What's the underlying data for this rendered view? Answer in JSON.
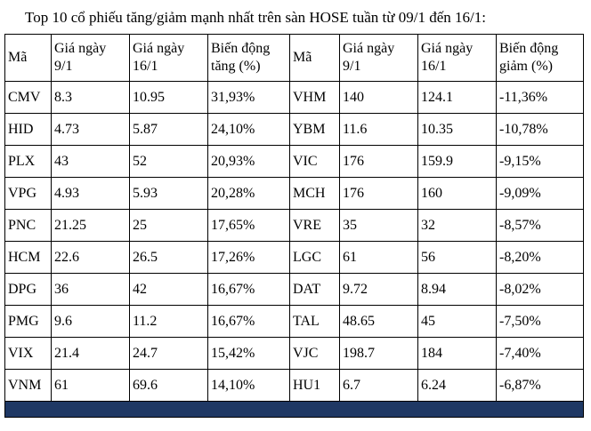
{
  "title": "Top 10 cổ phiếu tăng/giảm mạnh nhất trên sàn HOSE tuần từ 09/1 đến 16/1:",
  "table": {
    "headers": [
      "Mã",
      "Giá ngày 9/1",
      "Giá ngày 16/1",
      "Biến động tăng (%)",
      "Mã",
      "Giá ngày 9/1",
      "Giá ngày 16/1",
      "Biến động giảm (%)"
    ],
    "rows": [
      [
        "CMV",
        "8.3",
        "10.95",
        "31,93%",
        "VHM",
        "140",
        "124.1",
        "-11,36%"
      ],
      [
        "HID",
        "4.73",
        "5.87",
        "24,10%",
        "YBM",
        "11.6",
        "10.35",
        "-10,78%"
      ],
      [
        "PLX",
        "43",
        "52",
        "20,93%",
        "VIC",
        "176",
        "159.9",
        "-9,15%"
      ],
      [
        "VPG",
        "4.93",
        "5.93",
        "20,28%",
        "MCH",
        "176",
        "160",
        "-9,09%"
      ],
      [
        "PNC",
        "21.25",
        "25",
        "17,65%",
        "VRE",
        "35",
        "32",
        "-8,57%"
      ],
      [
        "HCM",
        "22.6",
        "26.5",
        "17,26%",
        "LGC",
        "61",
        "56",
        "-8,20%"
      ],
      [
        "DPG",
        "36",
        "42",
        "16,67%",
        "DAT",
        "9.72",
        "8.94",
        "-8,02%"
      ],
      [
        "PMG",
        "9.6",
        "11.2",
        "16,67%",
        "TAL",
        "48.65",
        "45",
        "-7,50%"
      ],
      [
        "VIX",
        "21.4",
        "24.7",
        "15,42%",
        "VJC",
        "198.7",
        "184",
        "-7,40%"
      ],
      [
        "VNM",
        "61",
        "69.6",
        "14,10%",
        "HU1",
        "6.7",
        "6.24",
        "-6,87%"
      ]
    ],
    "footer_bar_color": "#1f3864"
  },
  "chart_data": {
    "type": "table",
    "title": "Top 10 cổ phiếu tăng/giảm mạnh nhất trên sàn HOSE tuần từ 09/1 đến 16/1",
    "gainers": {
      "columns": [
        "Mã",
        "Giá ngày 9/1",
        "Giá ngày 16/1",
        "Biến động tăng (%)"
      ],
      "rows": [
        [
          "CMV",
          8.3,
          10.95,
          "31,93%"
        ],
        [
          "HID",
          4.73,
          5.87,
          "24,10%"
        ],
        [
          "PLX",
          43,
          52,
          "20,93%"
        ],
        [
          "VPG",
          4.93,
          5.93,
          "20,28%"
        ],
        [
          "PNC",
          21.25,
          25,
          "17,65%"
        ],
        [
          "HCM",
          22.6,
          26.5,
          "17,26%"
        ],
        [
          "DPG",
          36,
          42,
          "16,67%"
        ],
        [
          "PMG",
          9.6,
          11.2,
          "16,67%"
        ],
        [
          "VIX",
          21.4,
          24.7,
          "15,42%"
        ],
        [
          "VNM",
          61,
          69.6,
          "14,10%"
        ]
      ]
    },
    "losers": {
      "columns": [
        "Mã",
        "Giá ngày 9/1",
        "Giá ngày 16/1",
        "Biến động giảm (%)"
      ],
      "rows": [
        [
          "VHM",
          140,
          124.1,
          "-11,36%"
        ],
        [
          "YBM",
          11.6,
          10.35,
          "-10,78%"
        ],
        [
          "VIC",
          176,
          159.9,
          "-9,15%"
        ],
        [
          "MCH",
          176,
          160,
          "-9,09%"
        ],
        [
          "VRE",
          35,
          32,
          "-8,57%"
        ],
        [
          "LGC",
          61,
          56,
          "-8,20%"
        ],
        [
          "DAT",
          9.72,
          8.94,
          "-8,02%"
        ],
        [
          "TAL",
          48.65,
          45,
          "-7,50%"
        ],
        [
          "VJC",
          198.7,
          184,
          "-7,40%"
        ],
        [
          "HU1",
          6.7,
          6.24,
          "-6,87%"
        ]
      ]
    }
  }
}
